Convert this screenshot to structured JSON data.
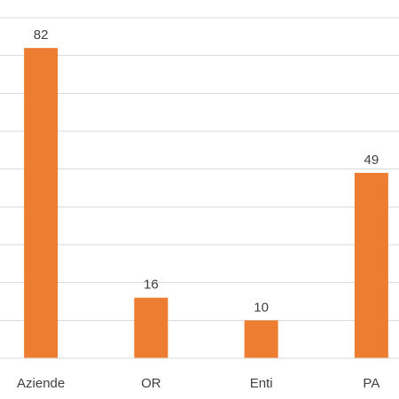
{
  "chart_data": {
    "type": "bar",
    "categories": [
      "Aziende",
      "OR",
      "Enti",
      "PA"
    ],
    "values": [
      82,
      16,
      10,
      49
    ],
    "ylim": [
      0,
      90
    ],
    "grid": true,
    "gridline_step": 10,
    "bar_color": "#ed7d31",
    "title": "",
    "xlabel": "",
    "ylabel": ""
  }
}
